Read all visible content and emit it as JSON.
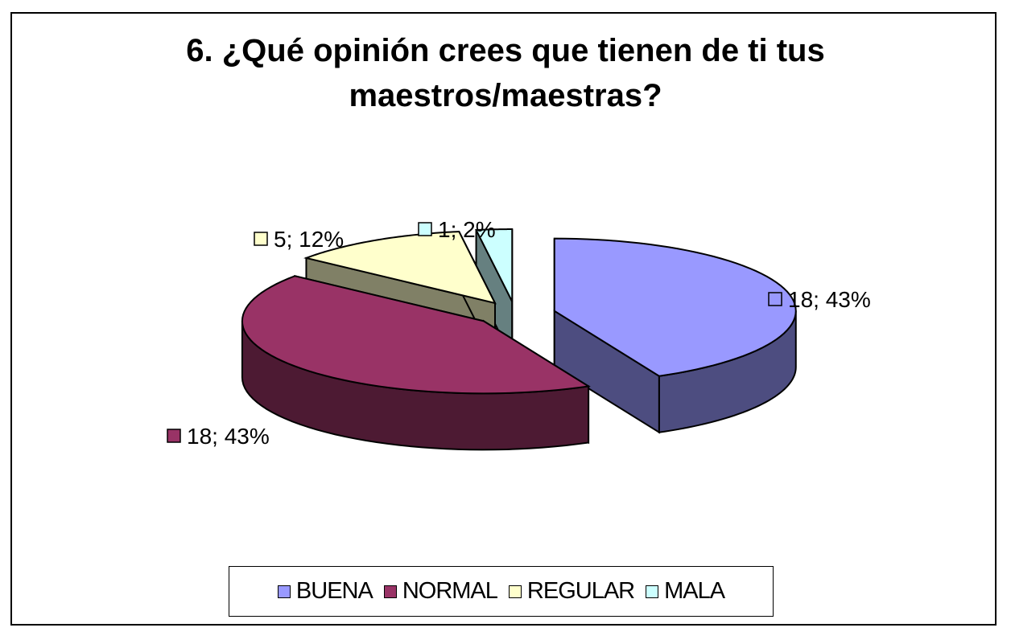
{
  "chart_data": {
    "type": "pie",
    "variant": "3d-exploded",
    "title_lines": [
      "6. ¿Qué opinión crees que tienen de ti tus",
      "maestros/maestras?"
    ],
    "categories": [
      "BUENA",
      "NORMAL",
      "REGULAR",
      "MALA"
    ],
    "values": [
      18,
      18,
      5,
      1
    ],
    "percent_labels": [
      "43%",
      "43%",
      "12%",
      "2%"
    ],
    "data_labels": [
      "18; 43%",
      "18; 43%",
      "5; 12%",
      "1; 2%"
    ],
    "colors": {
      "BUENA": "#9999ff",
      "NORMAL": "#993366",
      "REGULAR": "#ffffcc",
      "MALA": "#ccffff"
    },
    "legend_position": "bottom"
  }
}
